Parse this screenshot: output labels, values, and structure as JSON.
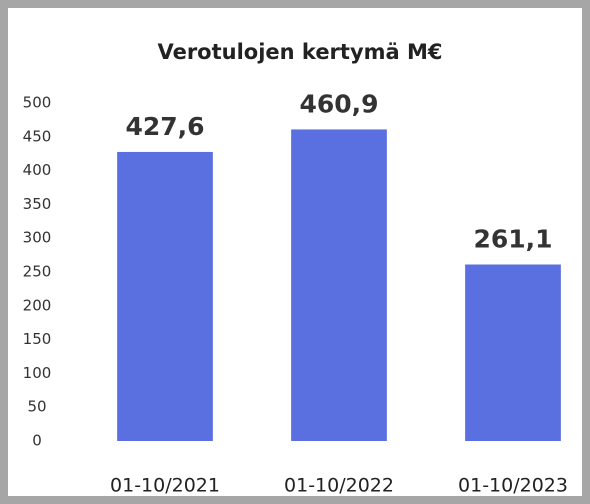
{
  "chart_data": {
    "type": "bar",
    "title": "Verotulojen kertymä M€",
    "categories": [
      "01-10/2021",
      "01-10/2022",
      "01-10/2023"
    ],
    "values": [
      427.6,
      460.9,
      261.1
    ],
    "value_labels": [
      "427,6",
      "460,9",
      "261,1"
    ],
    "color": "#5a6fe0",
    "ylim": [
      0,
      500
    ],
    "yticks": [
      0,
      50,
      100,
      150,
      200,
      250,
      300,
      350,
      400,
      450,
      500
    ],
    "grid": false
  }
}
